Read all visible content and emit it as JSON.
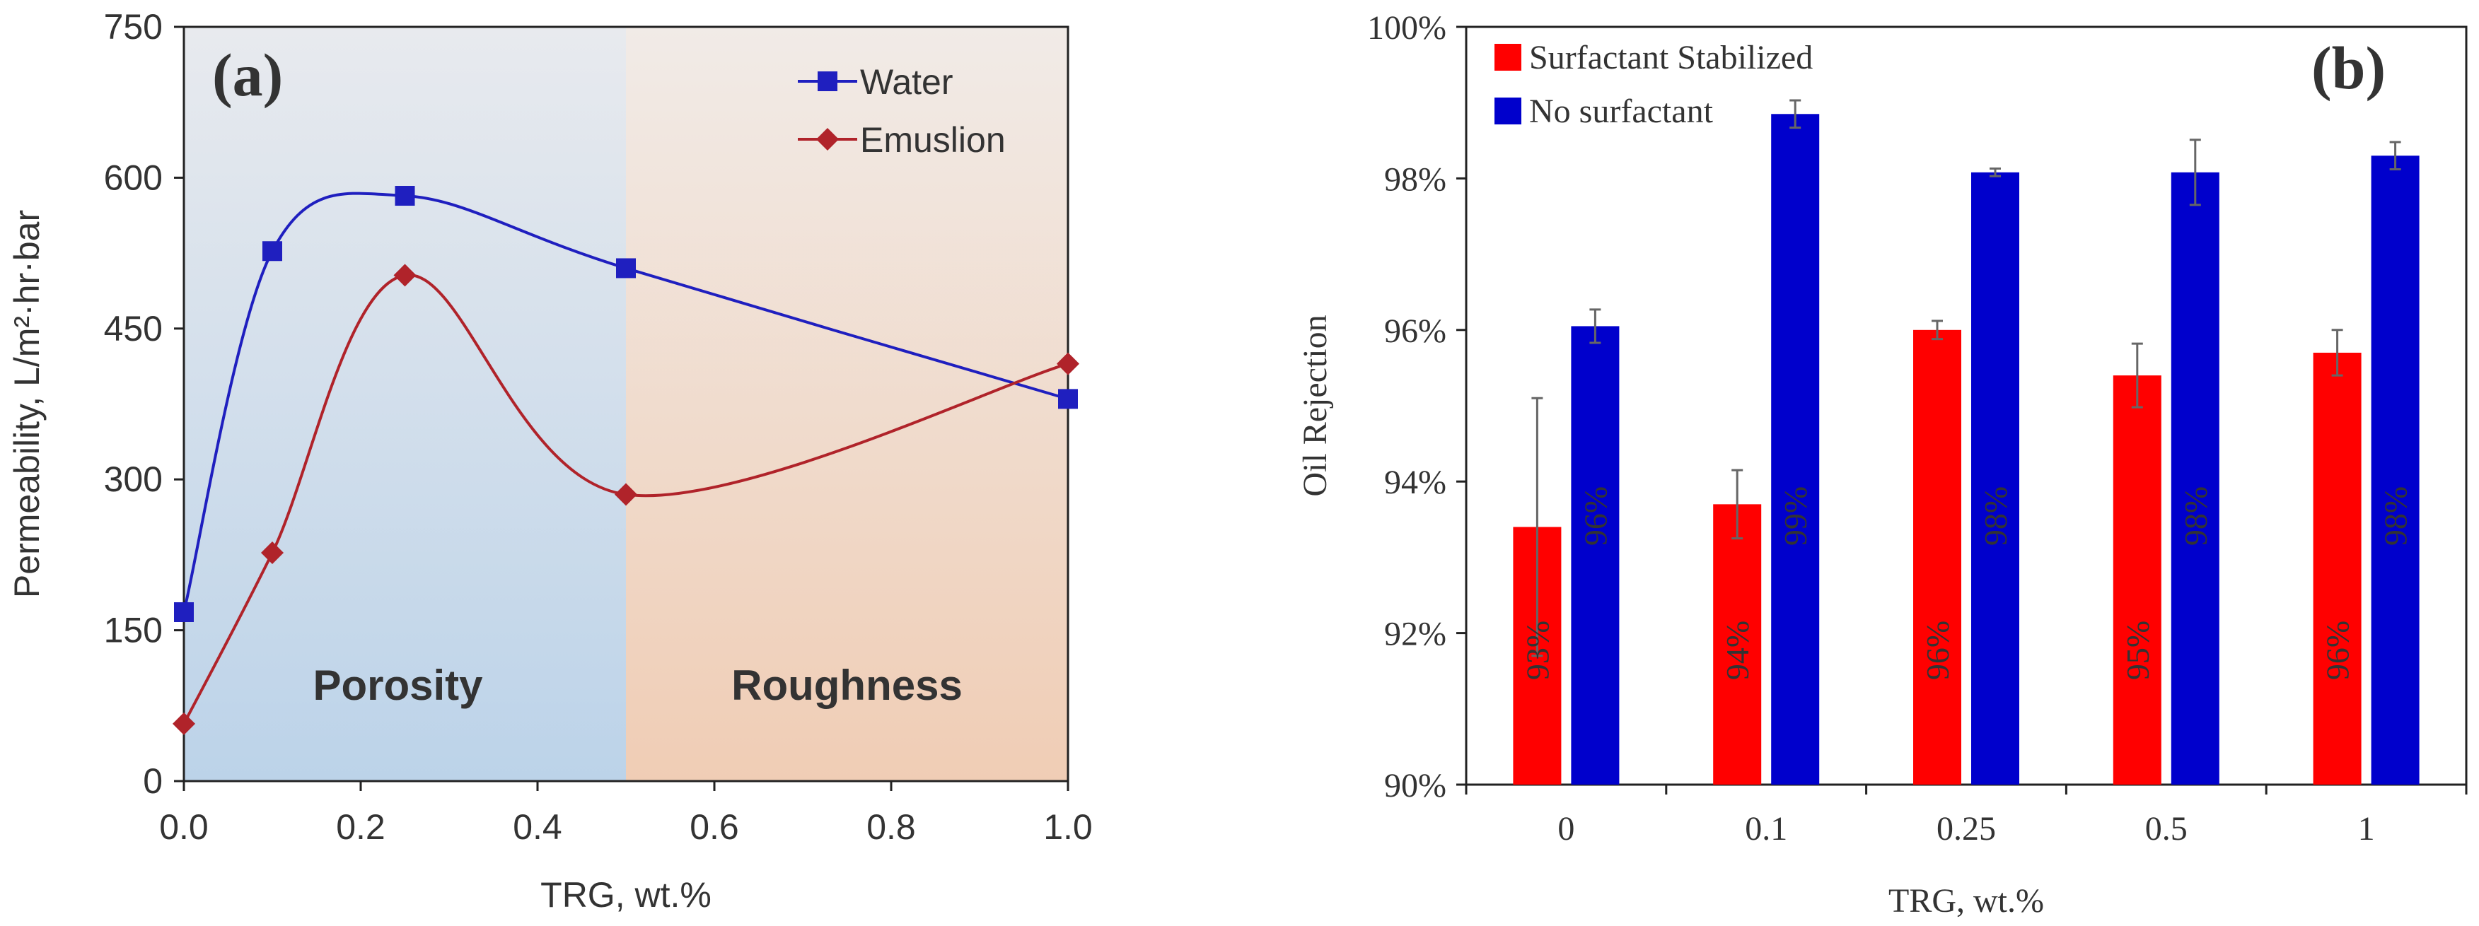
{
  "chart_data": [
    {
      "id": "a",
      "type": "line",
      "panel_label": "(a)",
      "xlabel": "TRG, wt.%",
      "ylabel": "Permeability, L/m²·hr·bar",
      "xlim": [
        0,
        1
      ],
      "ylim": [
        0,
        750
      ],
      "x_ticks": [
        "0.0",
        "0.2",
        "0.4",
        "0.6",
        "0.8",
        "1.0"
      ],
      "y_ticks": [
        "0",
        "150",
        "300",
        "450",
        "600",
        "750"
      ],
      "x_tick_values": [
        0,
        0.2,
        0.4,
        0.6,
        0.8,
        1.0
      ],
      "y_tick_values": [
        0,
        150,
        300,
        450,
        600,
        750
      ],
      "smooth": true,
      "series": [
        {
          "name": "Water",
          "color": "#1f1fbf",
          "marker": "square",
          "x": [
            0,
            0.1,
            0.25,
            0.5,
            1.0
          ],
          "values": [
            168,
            527,
            582,
            510,
            380
          ]
        },
        {
          "name": "Emuslion",
          "color": "#b0232a",
          "marker": "diamond",
          "x": [
            0,
            0.1,
            0.25,
            0.5,
            1.0
          ],
          "values": [
            57,
            227,
            503,
            285,
            415
          ]
        }
      ],
      "regions": [
        {
          "label": "Porosity",
          "from": 0,
          "to": 0.5,
          "color_top": "#e8eaee",
          "color_bottom": "#bcd3e9"
        },
        {
          "label": "Roughness",
          "from": 0.5,
          "to": 1.0,
          "color_top": "#f1ebe7",
          "color_bottom": "#f0cdb5"
        }
      ],
      "legend_position": "top-right"
    },
    {
      "id": "b",
      "type": "bar",
      "panel_label": "(b)",
      "xlabel": "TRG, wt.%",
      "ylabel": "Oil Rejection",
      "ylim": [
        90,
        100
      ],
      "y_ticks": [
        "90%",
        "92%",
        "94%",
        "96%",
        "98%",
        "100%"
      ],
      "y_tick_values": [
        90,
        92,
        94,
        96,
        98,
        100
      ],
      "categories": [
        "0",
        "0.1",
        "0.25",
        "0.5",
        "1"
      ],
      "series": [
        {
          "name": "Surfactant Stabilized",
          "color": "#ff0000",
          "values": [
            93.4,
            93.7,
            96.0,
            95.4,
            95.7
          ],
          "errors": [
            1.7,
            0.45,
            0.12,
            0.42,
            0.3
          ],
          "labels": [
            "93%",
            "94%",
            "96%",
            "95%",
            "96%"
          ]
        },
        {
          "name": "No surfactant",
          "color": "#0000cc",
          "values": [
            96.05,
            98.85,
            98.08,
            98.08,
            98.3
          ],
          "errors": [
            0.22,
            0.18,
            0.05,
            0.43,
            0.18
          ],
          "labels": [
            "96%",
            "99%",
            "98%",
            "98%",
            "98%"
          ]
        }
      ],
      "legend_position": "top-left"
    }
  ]
}
